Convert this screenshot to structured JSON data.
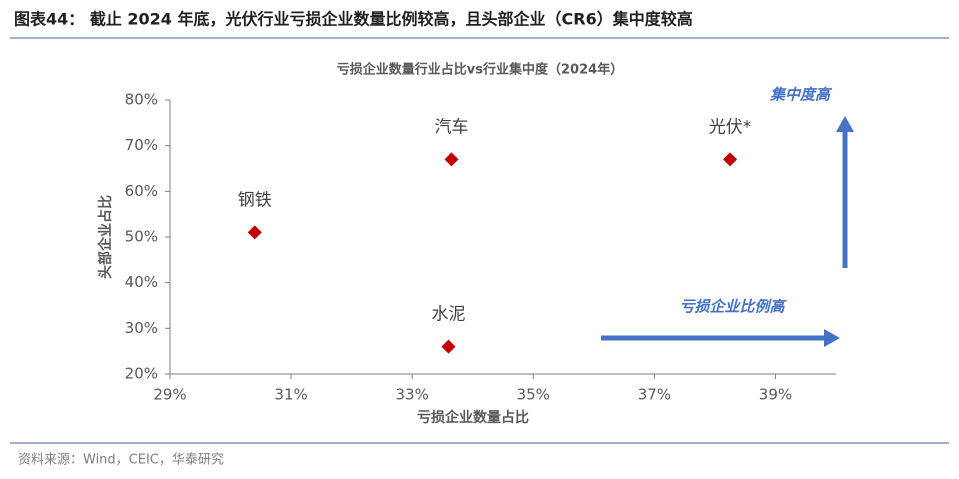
{
  "header": {
    "title": "图表44：  截止 2024 年底，光伏行业亏损企业数量比例较高，且头部企业（CR6）集中度较高"
  },
  "chart_data": {
    "type": "scatter",
    "title": "亏损企业数量行业占比vs行业集中度（2024年）",
    "x_label": "亏损企业数量占比",
    "y_label": "头部企业占比",
    "points": [
      {
        "label": "钢铁",
        "x": 30.4,
        "y": 51
      },
      {
        "label": "汽车",
        "x": 33.65,
        "y": 67
      },
      {
        "label": "光伏*",
        "x": 38.25,
        "y": 67
      },
      {
        "label": "水泥",
        "x": 33.6,
        "y": 26
      }
    ],
    "color": "#c00000",
    "xlim": [
      29,
      40
    ],
    "xticks": [
      {
        "value": 29,
        "label": "29%"
      },
      {
        "value": 31,
        "label": "31%"
      },
      {
        "value": 33,
        "label": "33%"
      },
      {
        "value": 35,
        "label": "35%"
      },
      {
        "value": 37,
        "label": "37%"
      },
      {
        "value": 39,
        "label": "39%"
      }
    ],
    "ylim": [
      20,
      80
    ],
    "yticks": [
      {
        "value": 20,
        "label": "20%"
      },
      {
        "value": 30,
        "label": "30%"
      },
      {
        "value": 40,
        "label": "40%"
      },
      {
        "value": 50,
        "label": "50%"
      },
      {
        "value": 60,
        "label": "60%"
      },
      {
        "value": 70,
        "label": "70%"
      },
      {
        "value": 80,
        "label": "80%"
      }
    ],
    "annotations": [
      "集中度高",
      "亏损企业比例高"
    ]
  },
  "footer": {
    "source": "资料来源：Wind，CEIC，华泰研究"
  }
}
